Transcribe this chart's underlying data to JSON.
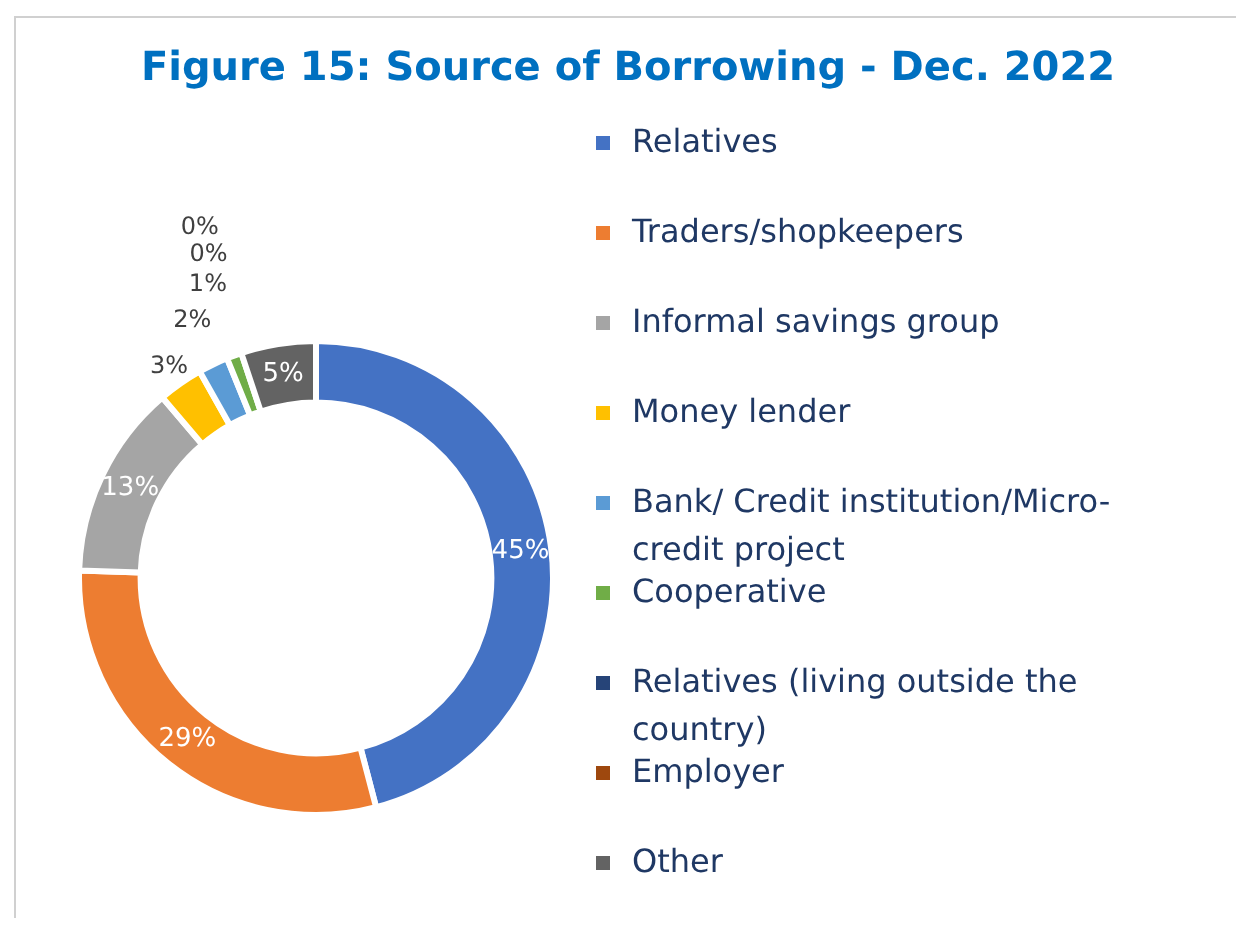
{
  "chart_data": {
    "type": "donut",
    "title": "Figure 15: Source of Borrowing - Dec. 2022",
    "categories": [
      "Relatives",
      "Traders/shopkeepers",
      "Informal savings group",
      "Money lender",
      "Bank/ Credit institution/Micro-credit project",
      "Cooperative",
      "Relatives (living outside the country)",
      "Employer",
      "Other"
    ],
    "values": [
      45,
      29,
      13,
      3,
      2,
      1,
      0,
      0,
      5
    ],
    "colors": [
      "#4472c4",
      "#ed7d31",
      "#a5a5a5",
      "#ffc000",
      "#5b9bd5",
      "#70ad47",
      "#264478",
      "#9e480e",
      "#636363"
    ],
    "value_labels": [
      "45%",
      "29%",
      "13%",
      "3%",
      "2%",
      "1%",
      "0%",
      "0%",
      "5%"
    ],
    "legend": "right"
  }
}
